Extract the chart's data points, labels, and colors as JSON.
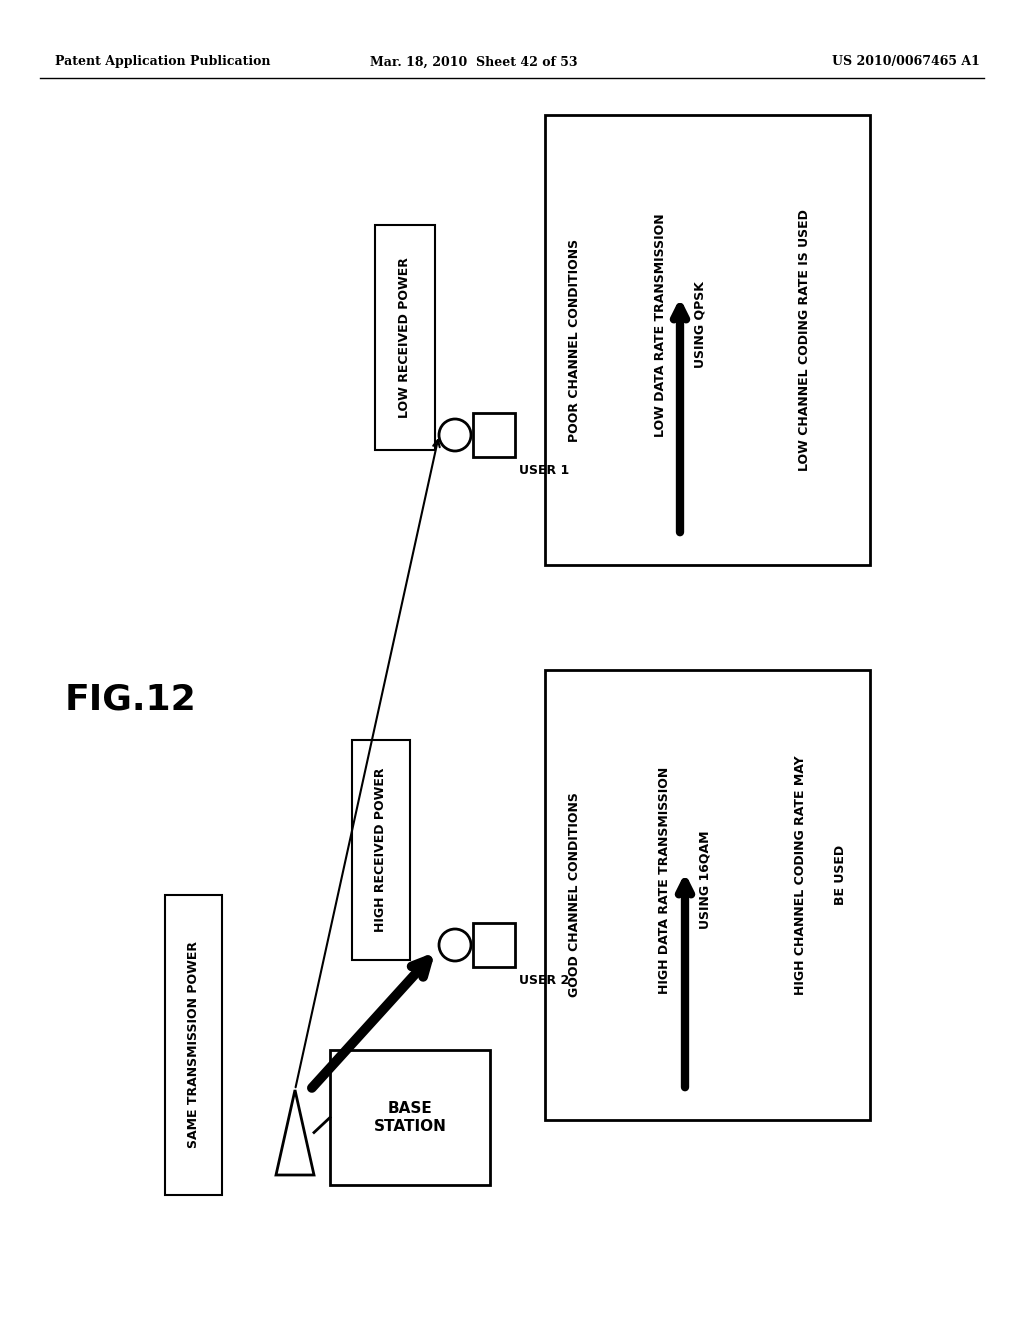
{
  "bg_color": "#ffffff",
  "header_left": "Patent Application Publication",
  "header_mid": "Mar. 18, 2010  Sheet 42 of 53",
  "header_right": "US 2010/0067465 A1",
  "fig_label": "FIG.12",
  "base_station_label": "BASE\nSTATION",
  "same_tx_power_label": "SAME TRANSMISSION POWER",
  "user1_label": "USER 1",
  "user2_label": "USER 2",
  "low_rx_power_label": "LOW RECEIVED POWER",
  "high_rx_power_label": "HIGH RECEIVED POWER",
  "info_box1_line0": "POOR CHANNEL CONDITIONS",
  "info_box1_line1": "LOW DATA RATE TRANSMISSION",
  "info_box1_line2": "USING QPSK",
  "info_box1_line3": "LOW CHANNEL CODING RATE IS USED",
  "info_box2_line0": "GOOD CHANNEL CONDITIONS",
  "info_box2_line1": "HIGH DATA RATE TRANSMISSION",
  "info_box2_line2": "USING 16QAM",
  "info_box2_line3": "HIGH CHANNEL CODING RATE MAY",
  "info_box2_line4": "BE USED"
}
